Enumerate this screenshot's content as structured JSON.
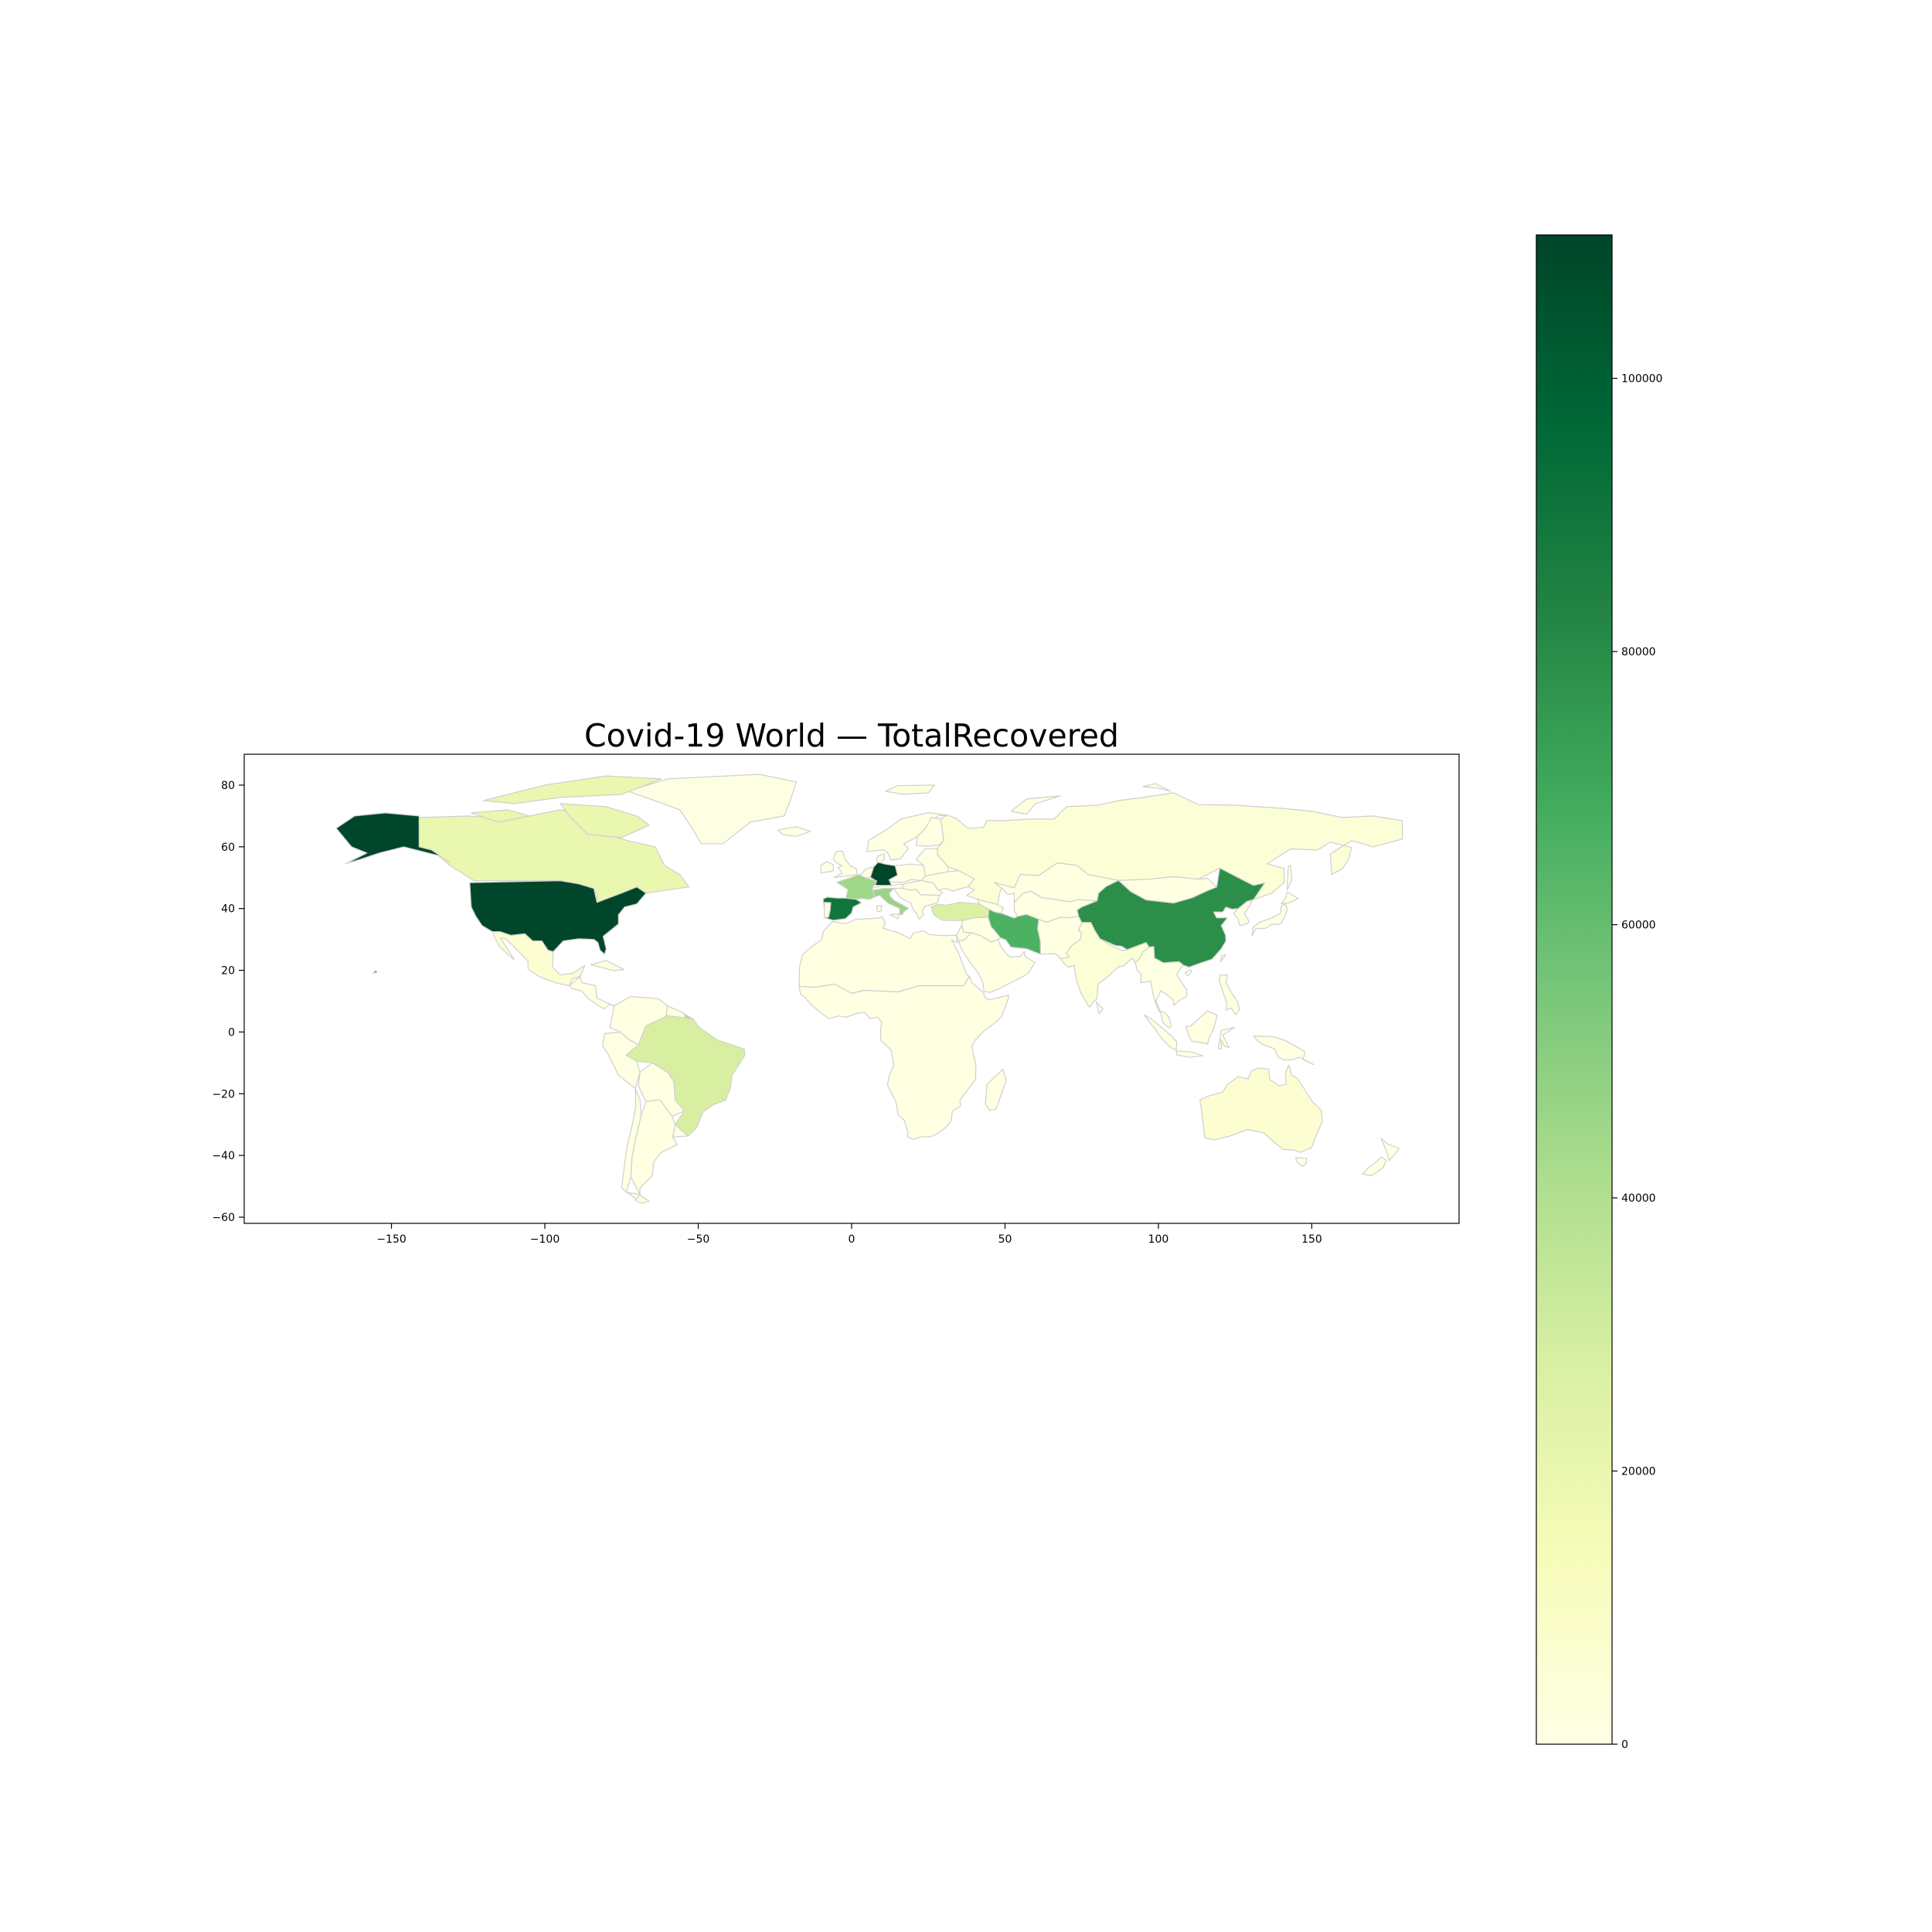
{
  "chart_data": {
    "type": "choropleth",
    "title": "Covid-19 World — TotalRecovered",
    "xlabel": "",
    "ylabel": "",
    "xlim": [
      -198,
      198
    ],
    "ylim": [
      -62,
      90
    ],
    "x_ticks": [
      -150,
      -100,
      -50,
      0,
      50,
      100,
      150
    ],
    "y_ticks": [
      -60,
      -40,
      -20,
      0,
      20,
      40,
      60,
      80
    ],
    "colormap": "YlGn",
    "colorbar": {
      "range": [
        0,
        110500
      ],
      "ticks": [
        0,
        20000,
        40000,
        60000,
        80000,
        100000
      ],
      "placement": "right"
    },
    "grid": false,
    "regions": [
      {
        "name": "United States",
        "value": 110000
      },
      {
        "name": "Germany",
        "value": 110000
      },
      {
        "name": "Spain",
        "value": 90000
      },
      {
        "name": "China",
        "value": 79000
      },
      {
        "name": "Iran",
        "value": 66000
      },
      {
        "name": "France",
        "value": 45000
      },
      {
        "name": "Italy",
        "value": 47000
      },
      {
        "name": "French Guiana",
        "value": 42000
      },
      {
        "name": "Brazil",
        "value": 28000
      },
      {
        "name": "Turkey",
        "value": 27000
      },
      {
        "name": "Canada",
        "value": 20000
      },
      {
        "name": "Russia",
        "value": 5000
      },
      {
        "name": "Greenland",
        "value": 1000
      },
      {
        "name": "Mexico",
        "value": 6000
      },
      {
        "name": "India",
        "value": 5000
      },
      {
        "name": "Australia",
        "value": 6000
      }
    ]
  }
}
